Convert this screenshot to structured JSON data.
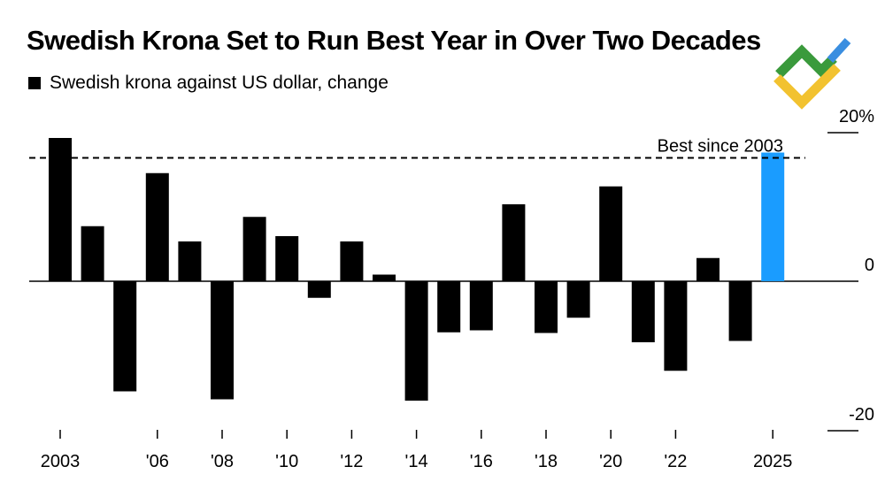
{
  "title": "Swedish Krona Set to Run Best Year in Over Two Decades",
  "legend": {
    "label": "Swedish krona against US dollar, change",
    "color": "#000000"
  },
  "logo": {
    "icon": "brand-logo-icon",
    "colors": [
      "#3a9a3c",
      "#f2c230",
      "#3a8ee0"
    ]
  },
  "chart_data": {
    "type": "bar",
    "categories": [
      "2003",
      "2004",
      "2005",
      "2006",
      "2007",
      "2008",
      "2009",
      "2010",
      "2011",
      "2012",
      "2013",
      "2014",
      "2015",
      "2016",
      "2017",
      "2018",
      "2019",
      "2020",
      "2021",
      "2022",
      "2023",
      "2024",
      "2025"
    ],
    "x_tick_labels": [
      {
        "category": "2003",
        "label": "2003"
      },
      {
        "category": "2006",
        "label": "'06"
      },
      {
        "category": "2008",
        "label": "'08"
      },
      {
        "category": "2010",
        "label": "'10"
      },
      {
        "category": "2012",
        "label": "'12"
      },
      {
        "category": "2014",
        "label": "'14"
      },
      {
        "category": "2016",
        "label": "'16"
      },
      {
        "category": "2018",
        "label": "'18"
      },
      {
        "category": "2020",
        "label": "'20"
      },
      {
        "category": "2022",
        "label": "'22"
      },
      {
        "category": "2025",
        "label": "2025"
      }
    ],
    "series": [
      {
        "values": [
          21.6,
          8.3,
          -16.6,
          16.3,
          6.0,
          -17.8,
          9.7,
          6.8,
          -2.5,
          6.0,
          1.0,
          -18.0,
          -7.7,
          -7.4,
          11.6,
          -7.8,
          -5.5,
          14.3,
          -9.2,
          -13.5,
          3.5,
          -9.0,
          19.4
        ],
        "colors": [
          "#000000",
          "#000000",
          "#000000",
          "#000000",
          "#000000",
          "#000000",
          "#000000",
          "#000000",
          "#000000",
          "#000000",
          "#000000",
          "#000000",
          "#000000",
          "#000000",
          "#000000",
          "#000000",
          "#000000",
          "#000000",
          "#000000",
          "#000000",
          "#000000",
          "#000000",
          "#1a9cff"
        ]
      }
    ],
    "ylim": [
      -20,
      20
    ],
    "y_ticks": [
      {
        "value": 20,
        "label": "20%"
      },
      {
        "value": 0,
        "label": "0"
      },
      {
        "value": -20,
        "label": "-20"
      }
    ],
    "reference_line": {
      "value": 18.6,
      "label": "Best since 2003",
      "style": "dashed"
    },
    "highlight_color": "#1a9cff",
    "grid": false
  }
}
